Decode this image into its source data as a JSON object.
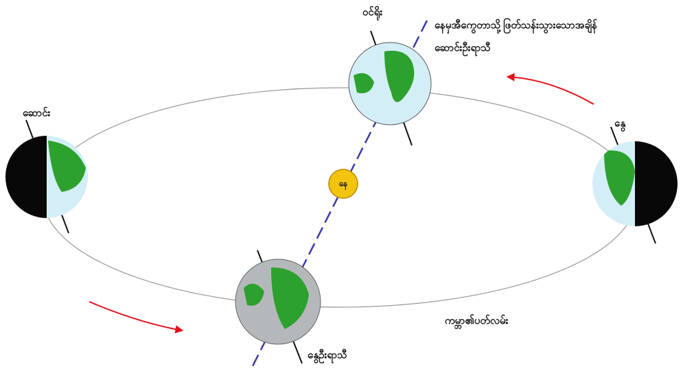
{
  "labels": {
    "axis": "ဝင်ရိုး",
    "equinox_note": "နေမှအီကွေတာသို့ဖြတ်သန်းသွားသောအချိန်",
    "autumn": "ဆောင်းဦးရာသီ",
    "winter": "ဆောင်း",
    "summer": "နွေ",
    "sun": "နေ",
    "orbit": "ကမ္ဘာ၏ပတ်လမ်း",
    "spring": "နွေဦးရာသီ"
  }
}
